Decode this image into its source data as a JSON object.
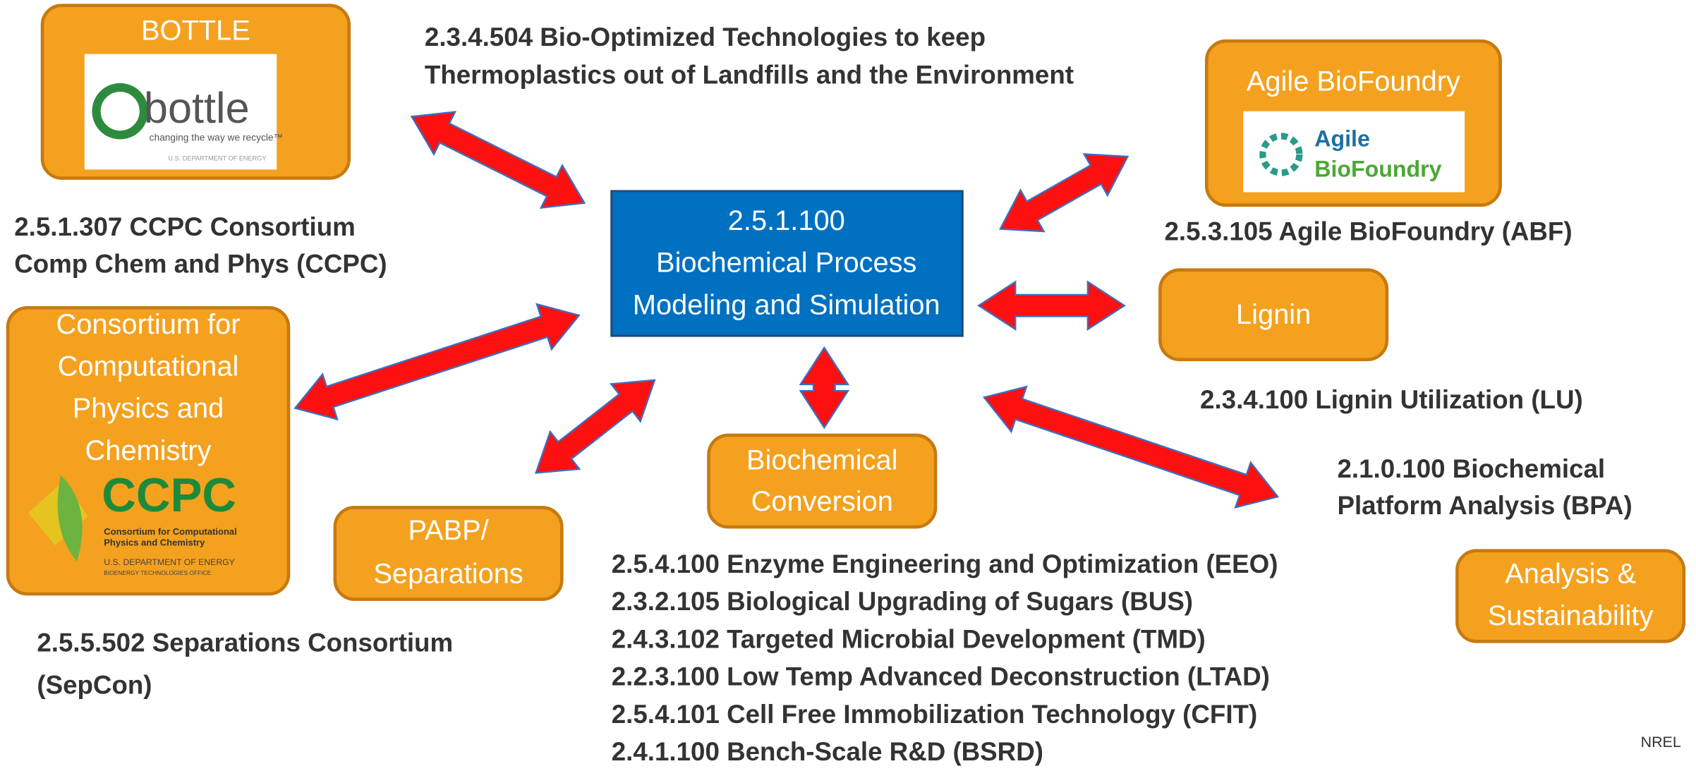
{
  "title": [
    "2.3.4.504 Bio-Optimized Technologies to keep",
    "Thermoplastics out of Landfills and the Environment"
  ],
  "center": [
    "2.5.1.100",
    "Biochemical Process",
    "Modeling and Simulation"
  ],
  "nodes": [
    {
      "label": [
        "BOTTLE"
      ],
      "logo": [
        "bottle",
        "changing the way we recycle™",
        "U.S. DEPARTMENT OF ENERGY"
      ]
    },
    {
      "label": [
        "Agile BioFoundry"
      ],
      "logo": [
        "Agile",
        "BioFoundry"
      ],
      "caption": [
        "2.5.3.105 Agile BioFoundry (ABF)"
      ]
    },
    {
      "label": [
        "Lignin"
      ],
      "caption": [
        "2.3.4.100 Lignin Utilization (LU)"
      ]
    },
    {
      "label": [
        "Consortium for",
        "Computational",
        "Physics and",
        "Chemistry"
      ],
      "logo": [
        "CCPC",
        "Consortium for Computational",
        "Physics and Chemistry",
        "U.S. DEPARTMENT OF ENERGY",
        "BIOENERGY TECHNOLOGIES OFFICE"
      ],
      "caption": [
        "2.5.1.307 CCPC Consortium",
        "Comp Chem and Phys (CCPC)"
      ]
    },
    {
      "label": [
        "PABP/",
        "Separations"
      ],
      "caption": [
        "2.5.5.502   Separations   Consortium",
        "(SepCon)"
      ]
    },
    {
      "label": [
        "Biochemical",
        "Conversion"
      ],
      "caption": [
        "2.5.4.100 Enzyme Engineering and Optimization  (EEO)",
        "2.3.2.105 Biological Upgrading of Sugars (BUS)",
        "2.4.3.102 Targeted Microbial Development (TMD)",
        "2.2.3.100 Low Temp Advanced Deconstruction (LTAD)",
        "2.5.4.101 Cell Free Immobilization Technology (CFIT)",
        "2.4.1.100 Bench-Scale R&D (BSRD)"
      ]
    },
    {
      "label": [
        "Analysis &",
        "Sustainability"
      ],
      "caption": [
        "2.1.0.100 Biochemical",
        "Platform Analysis (BPA)"
      ]
    }
  ],
  "footer": "NREL"
}
